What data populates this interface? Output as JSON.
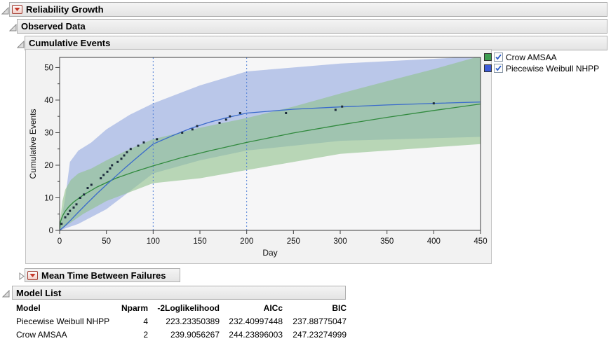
{
  "outline": {
    "reliability_growth": {
      "title": "Reliability Growth"
    },
    "observed_data": {
      "title": "Observed Data"
    },
    "cumulative_events": {
      "title": "Cumulative Events"
    },
    "mtbf": {
      "title": "Mean Time Between Failures"
    },
    "model_list": {
      "title": "Model List"
    }
  },
  "legend": {
    "items": [
      {
        "label": "Crow AMSAA",
        "color": "#3f9e52",
        "checked": true
      },
      {
        "label": "Piecewise Weibull NHPP",
        "color": "#3c5bd8",
        "checked": true
      }
    ]
  },
  "chart_data": {
    "type": "line",
    "xlabel": "Day",
    "ylabel": "Cumulative Events",
    "xlim": [
      0,
      450
    ],
    "ylim": [
      0,
      53.1
    ],
    "xticks": [
      0,
      50,
      100,
      150,
      200,
      250,
      300,
      350,
      400,
      450
    ],
    "yticks": [
      0,
      10,
      20,
      30,
      40,
      50
    ],
    "yticks_minor": [
      5,
      15,
      25,
      35,
      45
    ],
    "grid": false,
    "legend_position": "right",
    "phase_boundaries": [
      100,
      200
    ],
    "phase_line_color": "#4f7fd6",
    "plot_bg": "#f6f6f7",
    "frame_color": "#3f3f3f",
    "point_color": "#1d2b3c",
    "observed_points": [
      [
        2,
        2
      ],
      [
        6,
        4
      ],
      [
        9,
        5
      ],
      [
        11,
        6
      ],
      [
        15,
        7
      ],
      [
        18,
        8
      ],
      [
        22,
        10
      ],
      [
        26,
        11
      ],
      [
        30,
        13
      ],
      [
        34,
        14
      ],
      [
        44,
        16
      ],
      [
        47,
        17
      ],
      [
        51,
        18
      ],
      [
        54,
        19
      ],
      [
        56,
        20
      ],
      [
        62,
        21
      ],
      [
        66,
        22
      ],
      [
        69,
        23
      ],
      [
        72,
        24
      ],
      [
        76,
        25
      ],
      [
        84,
        26
      ],
      [
        90,
        27
      ],
      [
        104,
        28
      ],
      [
        131,
        30
      ],
      [
        142,
        31
      ],
      [
        147,
        32
      ],
      [
        171,
        33
      ],
      [
        178,
        34
      ],
      [
        182,
        35
      ],
      [
        193,
        36
      ],
      [
        242,
        36
      ],
      [
        295,
        37
      ],
      [
        302,
        38
      ],
      [
        400,
        39
      ]
    ],
    "series": [
      {
        "name": "Crow AMSAA",
        "color": "#318a3e",
        "band_color": "#8fc28a",
        "line": [
          [
            0,
            0
          ],
          [
            1,
            2.7
          ],
          [
            3,
            4.4
          ],
          [
            6,
            5.9
          ],
          [
            10,
            7.3
          ],
          [
            15,
            8.7
          ],
          [
            25,
            10.8
          ],
          [
            40,
            13.3
          ],
          [
            60,
            16
          ],
          [
            80,
            18
          ],
          [
            100,
            19.8
          ],
          [
            130,
            22.3
          ],
          [
            160,
            24.4
          ],
          [
            200,
            27
          ],
          [
            250,
            29.9
          ],
          [
            300,
            32.4
          ],
          [
            350,
            34.7
          ],
          [
            400,
            36.8
          ],
          [
            450,
            38.8
          ]
        ],
        "band_upper": [
          [
            0,
            0
          ],
          [
            1,
            4
          ],
          [
            3,
            9
          ],
          [
            6,
            12.5
          ],
          [
            12,
            15.5
          ],
          [
            20,
            17.5
          ],
          [
            34,
            19
          ],
          [
            50,
            21.5
          ],
          [
            75,
            25
          ],
          [
            100,
            28
          ],
          [
            150,
            31.5
          ],
          [
            200,
            34.5
          ],
          [
            250,
            38
          ],
          [
            300,
            42
          ],
          [
            350,
            45.8
          ],
          [
            400,
            49.5
          ],
          [
            441,
            52.8
          ],
          [
            450,
            53.5
          ]
        ],
        "band_lower": [
          [
            0,
            0
          ],
          [
            25,
            5
          ],
          [
            50,
            9
          ],
          [
            100,
            14.5
          ],
          [
            150,
            16
          ],
          [
            200,
            18.5
          ],
          [
            300,
            23.5
          ],
          [
            450,
            26.5
          ]
        ]
      },
      {
        "name": "Piecewise Weibull NHPP",
        "color": "#3a6bcb",
        "band_color": "#92a8e0",
        "line": [
          [
            0,
            0
          ],
          [
            5,
            1.2
          ],
          [
            10,
            2.6
          ],
          [
            20,
            5.6
          ],
          [
            30,
            8.5
          ],
          [
            40,
            11.3
          ],
          [
            50,
            14
          ],
          [
            60,
            16.6
          ],
          [
            70,
            19.2
          ],
          [
            80,
            21.7
          ],
          [
            90,
            24.1
          ],
          [
            100,
            26.5
          ],
          [
            120,
            29
          ],
          [
            140,
            31.3
          ],
          [
            160,
            33.2
          ],
          [
            180,
            34.7
          ],
          [
            200,
            36
          ],
          [
            250,
            37.2
          ],
          [
            300,
            37.9
          ],
          [
            350,
            38.5
          ],
          [
            400,
            39
          ],
          [
            450,
            39.4
          ]
        ],
        "band_upper": [
          [
            0,
            0
          ],
          [
            3,
            5
          ],
          [
            6,
            10
          ],
          [
            11,
            21
          ],
          [
            20,
            24.5
          ],
          [
            34,
            27
          ],
          [
            50,
            31
          ],
          [
            75,
            35.5
          ],
          [
            100,
            39
          ],
          [
            150,
            44.5
          ],
          [
            200,
            48.8
          ],
          [
            300,
            51.2
          ],
          [
            450,
            53.4
          ]
        ],
        "band_lower": [
          [
            0,
            0
          ],
          [
            20,
            2
          ],
          [
            50,
            6.5
          ],
          [
            75,
            12
          ],
          [
            100,
            17.5
          ],
          [
            150,
            21.5
          ],
          [
            200,
            24.5
          ],
          [
            300,
            27.5
          ],
          [
            450,
            28.7
          ]
        ]
      }
    ]
  },
  "model_table": {
    "columns": [
      "Model",
      "Nparm",
      "-2Loglikelihood",
      "AICc",
      "BIC"
    ],
    "rows": [
      [
        "Piecewise Weibull NHPP",
        "4",
        "223.23350389",
        "232.40997448",
        "237.88775047"
      ],
      [
        "Crow AMSAA",
        "2",
        "239.9056267",
        "244.23896003",
        "247.23274999"
      ]
    ]
  }
}
